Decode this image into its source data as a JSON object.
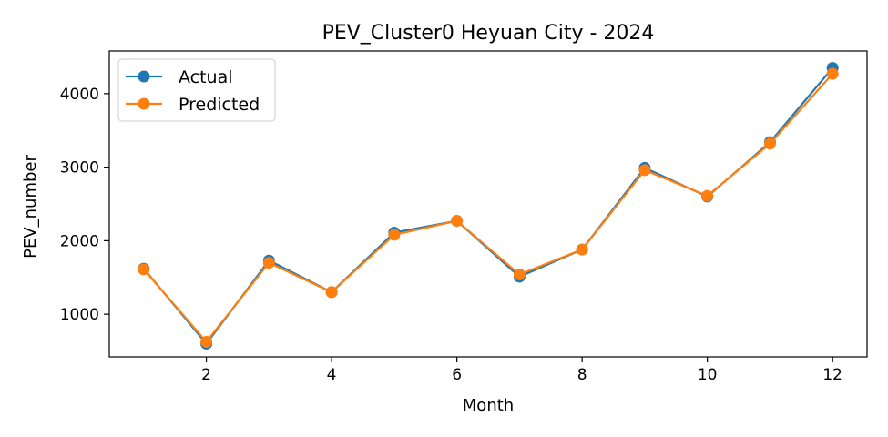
{
  "chart_data": {
    "type": "line",
    "title": "PEV_Cluster0 Heyuan City - 2024",
    "xlabel": "Month",
    "ylabel": "PEV_number",
    "x": [
      1,
      2,
      3,
      4,
      5,
      6,
      7,
      8,
      9,
      10,
      11,
      12
    ],
    "xlim": [
      0.45,
      12.55
    ],
    "ylim": [
      420,
      4580
    ],
    "xticks": [
      2,
      4,
      6,
      8,
      10,
      12
    ],
    "yticks": [
      1000,
      2000,
      3000,
      4000
    ],
    "grid": false,
    "legend_position": "top-left",
    "series": [
      {
        "name": "Actual",
        "color": "#1f77b4",
        "marker": "circle",
        "values": [
          1620,
          600,
          1730,
          1300,
          2110,
          2270,
          1510,
          1880,
          2990,
          2600,
          3340,
          4350
        ]
      },
      {
        "name": "Predicted",
        "color": "#ff7f0e",
        "marker": "circle",
        "values": [
          1610,
          625,
          1700,
          1300,
          2080,
          2270,
          1540,
          1880,
          2960,
          2610,
          3320,
          4270
        ]
      }
    ]
  }
}
